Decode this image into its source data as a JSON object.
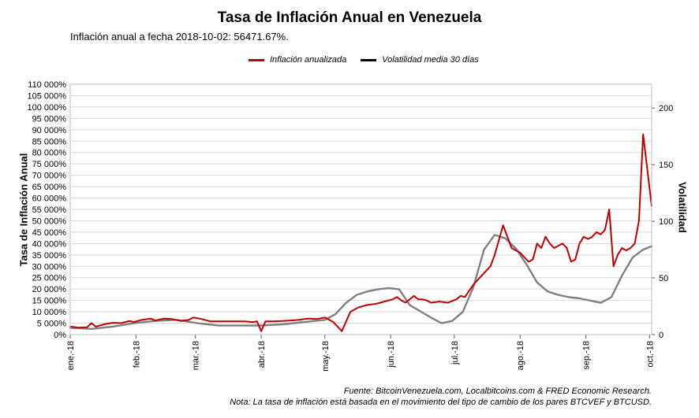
{
  "title": "Tasa de Inflación Anual en Venezuela",
  "subtitle": "Inflación anual a fecha 2018-10-02: 56471.67%.",
  "footer": {
    "source": "Fuente: BitcoinVenezuela.com, Localbitcoins.com & FRED Economic Research.",
    "note": "Nota: La tasa de inflación está basada en el movimiento del tipo de cambio de los pares BTCVEF y BTCUSD."
  },
  "colors": {
    "inflation": "#c00000",
    "volatility": "#808080",
    "legend_volatility": "#000000",
    "grid": "#d9d9d9",
    "axis": "#555555"
  },
  "chart_data": {
    "type": "line",
    "title": "Tasa de Inflación Anual en Venezuela",
    "xlabel": "",
    "ylabel": "Tasa de Inflación Anual",
    "y2label": "Volatilidad",
    "x_ticks": [
      "ene.-18",
      "feb.-18",
      "mar.-18",
      "abr.-18",
      "may.-18",
      "jun.-18",
      "jul.-18",
      "ago.-18",
      "sep.-18",
      "oct.-18"
    ],
    "x_range_days": [
      0,
      274
    ],
    "ylim": [
      0,
      110000
    ],
    "y_ticks": [
      "0%",
      "5 000%",
      "10 000%",
      "15 000%",
      "20 000%",
      "25 000%",
      "30 000%",
      "35 000%",
      "40 000%",
      "45 000%",
      "50 000%",
      "55 000%",
      "60 000%",
      "65 000%",
      "70 000%",
      "75 000%",
      "80 000%",
      "85 000%",
      "90 000%",
      "95 000%",
      "100 000%",
      "105 000%",
      "110 000%"
    ],
    "y2lim": [
      0,
      221
    ],
    "y2_ticks": [
      "0",
      "50",
      "100",
      "150",
      "200"
    ],
    "legend": [
      "Inflación anualizada",
      "Volatilidad media 30 días"
    ],
    "legend_position": "top",
    "series": [
      {
        "name": "Inflación anualizada",
        "axis": "left",
        "x": [
          0,
          4,
          8,
          10,
          12,
          16,
          20,
          24,
          28,
          30,
          34,
          38,
          40,
          44,
          48,
          52,
          56,
          58,
          62,
          66,
          70,
          74,
          78,
          82,
          86,
          88,
          90,
          92,
          96,
          100,
          104,
          108,
          112,
          116,
          120,
          124,
          128,
          132,
          136,
          140,
          144,
          148,
          152,
          154,
          156,
          158,
          160,
          162,
          164,
          166,
          168,
          170,
          174,
          178,
          182,
          184,
          186,
          190,
          194,
          198,
          200,
          204,
          208,
          212,
          216,
          218,
          220,
          222,
          224,
          226,
          228,
          230,
          232,
          234,
          236,
          238,
          240,
          242,
          244,
          246,
          248,
          250,
          252,
          254,
          256,
          258,
          260,
          262,
          264,
          266,
          268,
          270,
          274
        ],
        "values": [
          3500,
          3000,
          3200,
          5000,
          3500,
          4500,
          5200,
          5000,
          6000,
          5500,
          6500,
          7000,
          6200,
          7000,
          6800,
          6000,
          6500,
          7500,
          6800,
          5800,
          5800,
          5800,
          5800,
          5800,
          5500,
          5800,
          1500,
          5800,
          5800,
          6000,
          6200,
          6500,
          7000,
          6800,
          7500,
          5500,
          1500,
          10000,
          12000,
          13000,
          13500,
          14500,
          15500,
          16500,
          15000,
          14000,
          15500,
          17000,
          15500,
          15500,
          15000,
          14000,
          14500,
          14000,
          15500,
          17000,
          16500,
          22000,
          26000,
          30000,
          35000,
          48000,
          38000,
          36000,
          32000,
          33000,
          40000,
          38000,
          43000,
          40000,
          38000,
          39000,
          40000,
          38000,
          32000,
          33000,
          40000,
          43000,
          42000,
          43000,
          45000,
          44000,
          46000,
          55000,
          30000,
          35000,
          38000,
          37000,
          38000,
          40000,
          50000,
          88000,
          56472
        ]
      },
      {
        "name": "Volatilidad media 30 días",
        "axis": "right",
        "x": [
          0,
          10,
          20,
          30,
          40,
          50,
          60,
          70,
          80,
          90,
          100,
          110,
          120,
          125,
          130,
          135,
          140,
          145,
          150,
          155,
          160,
          170,
          175,
          180,
          185,
          190,
          195,
          200,
          205,
          210,
          215,
          220,
          225,
          230,
          235,
          240,
          245,
          250,
          255,
          260,
          265,
          270,
          274
        ],
        "values": [
          6,
          5,
          7,
          10,
          12,
          13,
          10,
          8,
          8,
          8,
          9,
          11,
          13,
          18,
          28,
          35,
          38,
          40,
          41,
          40,
          26,
          15,
          10,
          12,
          20,
          42,
          75,
          88,
          85,
          76,
          62,
          46,
          38,
          35,
          33,
          32,
          30,
          28,
          33,
          52,
          68,
          75,
          78
        ]
      }
    ]
  }
}
